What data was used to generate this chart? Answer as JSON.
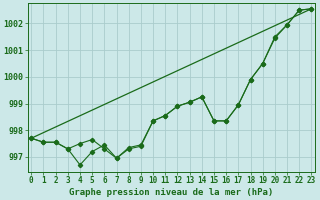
{
  "xlabel": "Graphe pression niveau de la mer (hPa)",
  "background_color": "#cce8e8",
  "grid_color": "#aacccc",
  "line_color": "#1a6b1a",
  "hours": [
    0,
    1,
    2,
    3,
    4,
    5,
    6,
    7,
    8,
    9,
    10,
    11,
    12,
    13,
    14,
    15,
    16,
    17,
    18,
    19,
    20,
    21,
    22,
    23
  ],
  "series1": [
    997.7,
    997.55,
    997.55,
    997.3,
    996.7,
    997.2,
    997.45,
    996.95,
    997.35,
    997.45,
    998.35,
    998.55,
    998.9,
    999.05,
    999.25,
    998.35,
    998.35,
    998.95,
    999.9,
    1000.5,
    1001.5,
    1001.95,
    1002.5,
    1002.55
  ],
  "series2": [
    997.7,
    997.55,
    997.55,
    997.3,
    997.5,
    997.65,
    997.3,
    996.95,
    997.3,
    997.4,
    998.35,
    998.55,
    998.9,
    999.05,
    999.25,
    998.35,
    998.35,
    998.95,
    999.9,
    1000.5,
    1001.45,
    1001.95,
    1002.5,
    1002.55
  ],
  "trend_x": [
    0,
    23
  ],
  "trend_y": [
    997.7,
    1002.55
  ],
  "ylim": [
    996.45,
    1002.75
  ],
  "yticks": [
    997,
    998,
    999,
    1000,
    1001,
    1002
  ],
  "xticks": [
    0,
    1,
    2,
    3,
    4,
    5,
    6,
    7,
    8,
    9,
    10,
    11,
    12,
    13,
    14,
    15,
    16,
    17,
    18,
    19,
    20,
    21,
    22,
    23
  ],
  "xlabel_fontsize": 6.5,
  "tick_fontsize": 5.5
}
